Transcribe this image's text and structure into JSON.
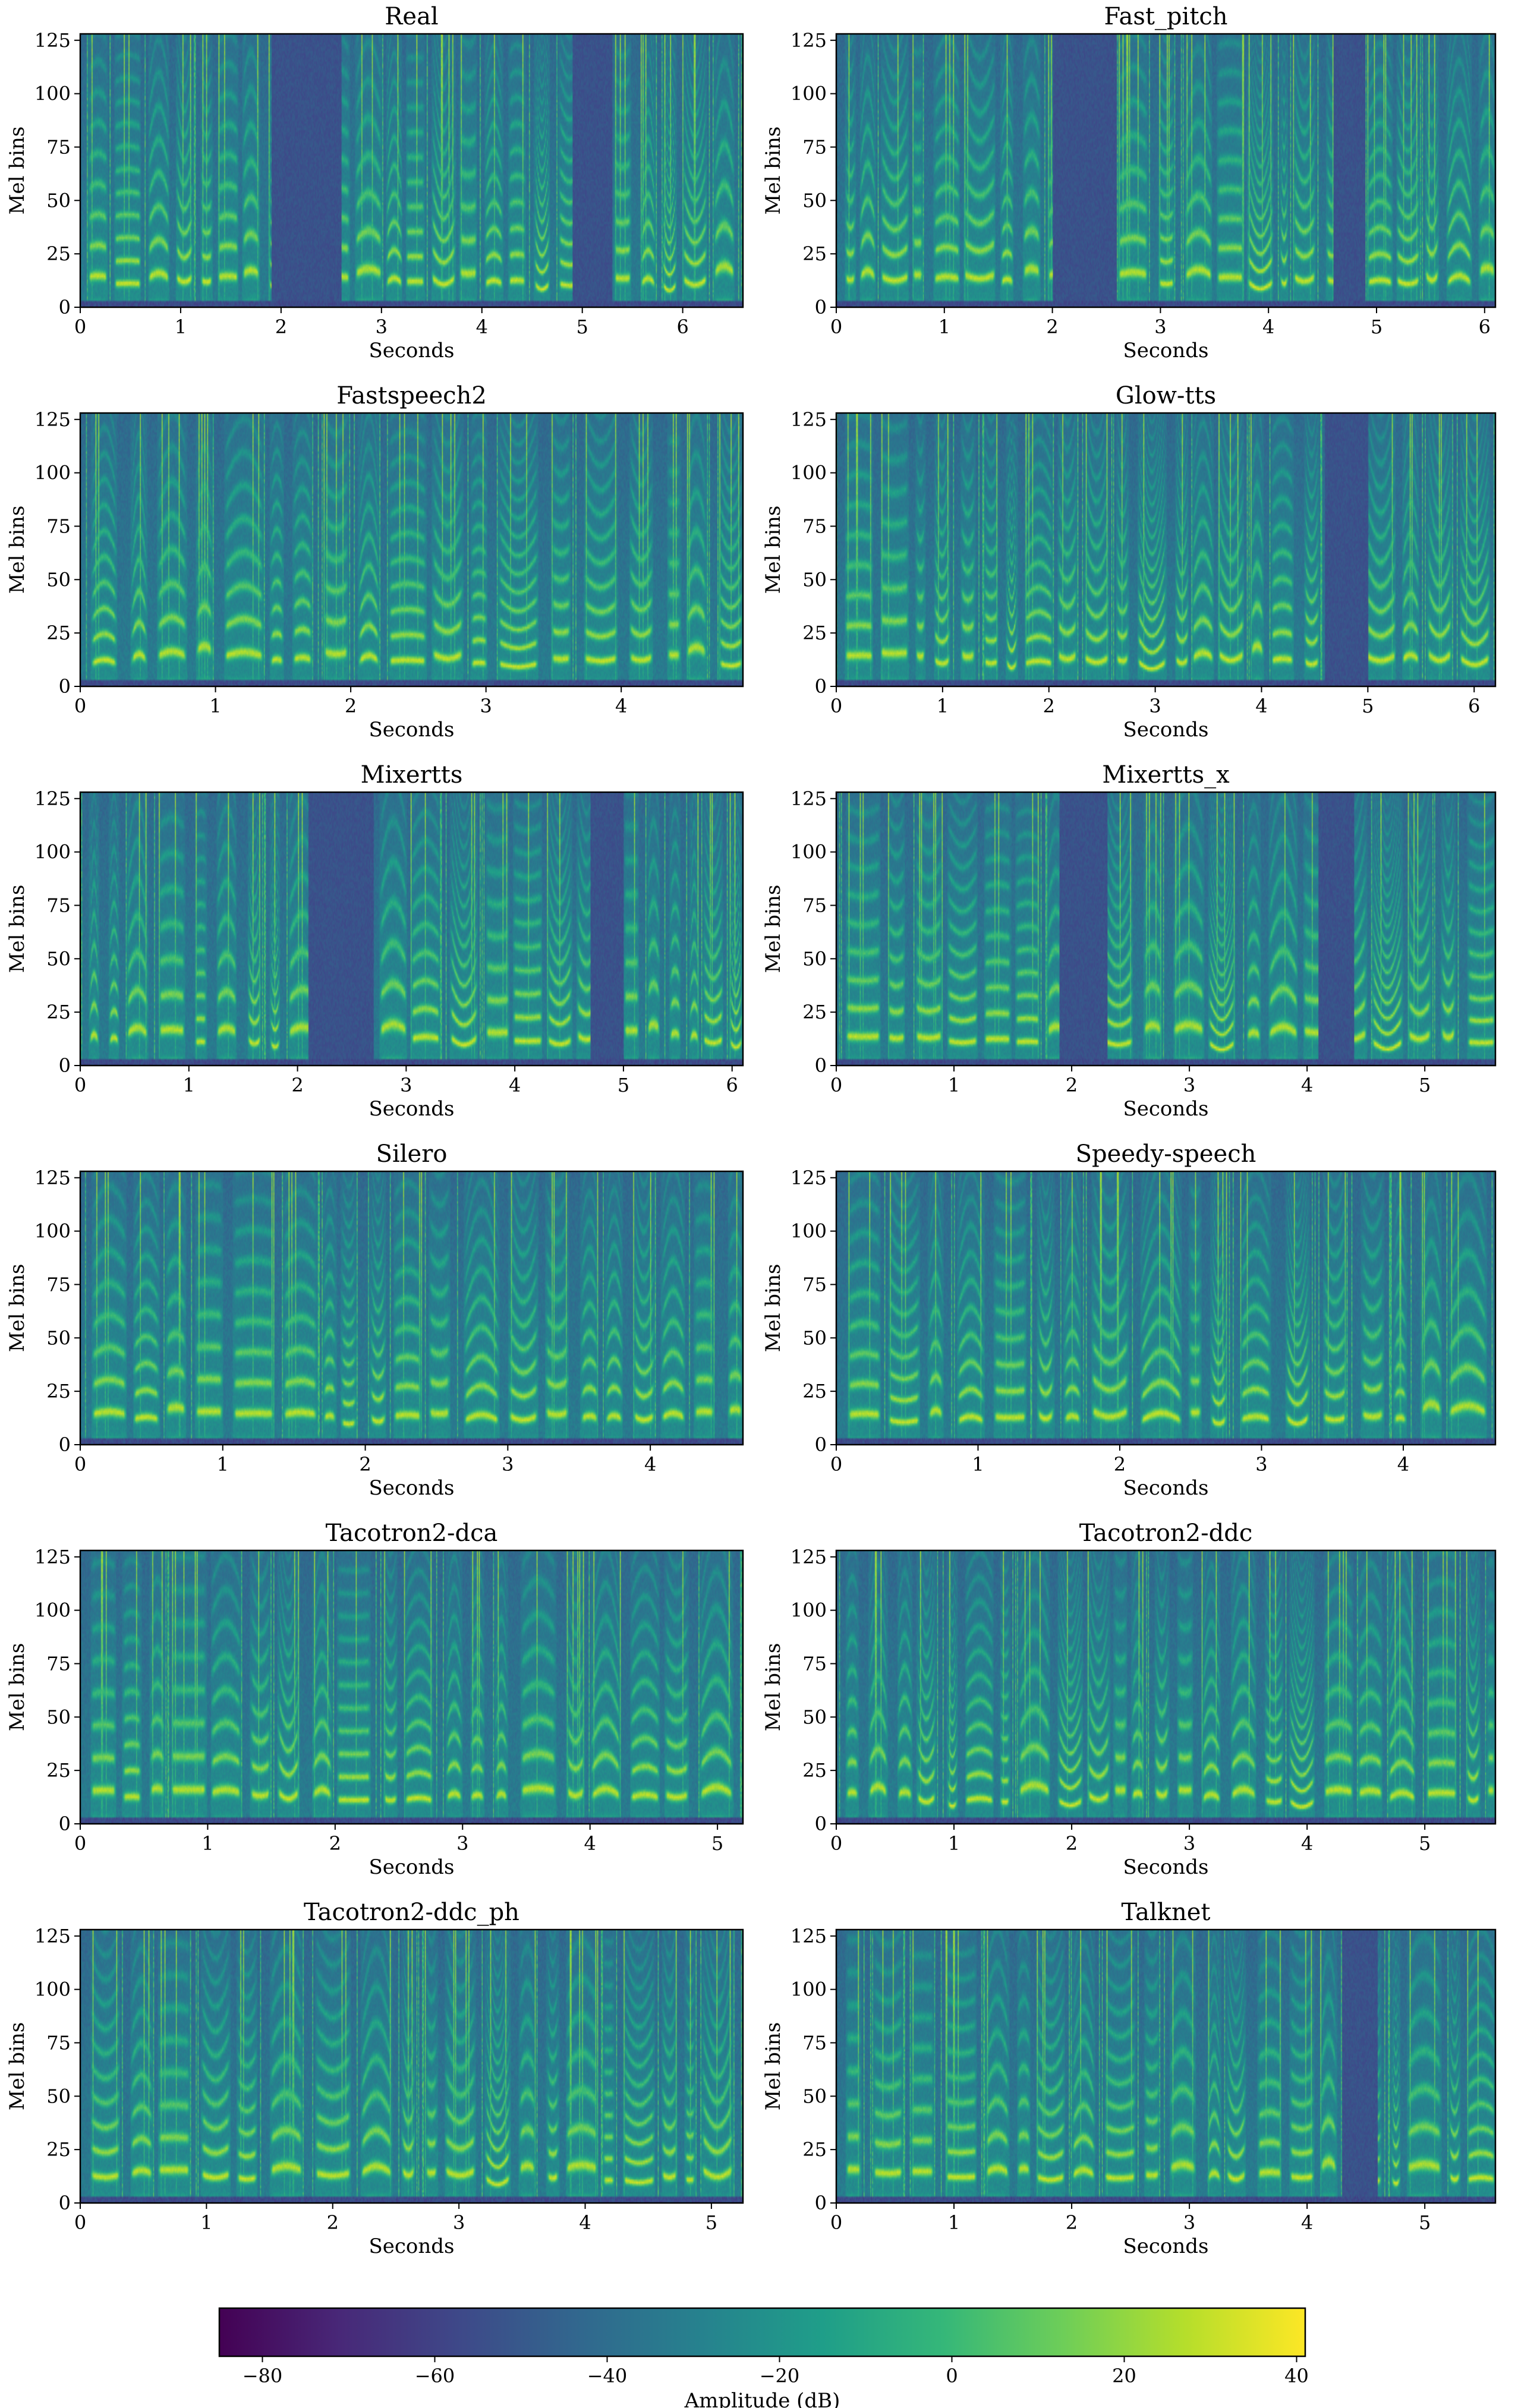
{
  "chart_data": [
    {
      "type": "heatmap",
      "title": "Real",
      "xlabel": "Seconds",
      "ylabel": "Mel bins",
      "xlim": [
        0,
        6.6
      ],
      "xticks": [
        0,
        1,
        2,
        3,
        4,
        5,
        6
      ],
      "ylim": [
        0,
        128
      ],
      "yticks": [
        0,
        25,
        50,
        75,
        100,
        125
      ],
      "duration": 6.6,
      "seed": 11,
      "gaps": [
        [
          1.9,
          2.6
        ],
        [
          4.9,
          5.3
        ]
      ]
    },
    {
      "type": "heatmap",
      "title": "Fast_pitch",
      "xlabel": "Seconds",
      "ylabel": "Mel bins",
      "xlim": [
        0,
        6.1
      ],
      "xticks": [
        0,
        1,
        2,
        3,
        4,
        5,
        6
      ],
      "ylim": [
        0,
        128
      ],
      "yticks": [
        0,
        25,
        50,
        75,
        100,
        125
      ],
      "duration": 6.1,
      "seed": 23,
      "gaps": [
        [
          2.0,
          2.6
        ],
        [
          4.6,
          4.9
        ]
      ]
    },
    {
      "type": "heatmap",
      "title": "Fastspeech2",
      "xlabel": "Seconds",
      "ylabel": "Mel bins",
      "xlim": [
        0,
        4.9
      ],
      "xticks": [
        0,
        1,
        2,
        3,
        4
      ],
      "ylim": [
        0,
        128
      ],
      "yticks": [
        0,
        25,
        50,
        75,
        100,
        125
      ],
      "duration": 4.9,
      "seed": 37,
      "gaps": []
    },
    {
      "type": "heatmap",
      "title": "Glow-tts",
      "xlabel": "Seconds",
      "ylabel": "Mel bins",
      "xlim": [
        0,
        6.2
      ],
      "xticks": [
        0,
        1,
        2,
        3,
        4,
        5,
        6
      ],
      "ylim": [
        0,
        128
      ],
      "yticks": [
        0,
        25,
        50,
        75,
        100,
        125
      ],
      "duration": 6.2,
      "seed": 41,
      "gaps": [
        [
          4.6,
          5.0
        ]
      ]
    },
    {
      "type": "heatmap",
      "title": "Mixertts",
      "xlabel": "Seconds",
      "ylabel": "Mel bins",
      "xlim": [
        0,
        6.1
      ],
      "xticks": [
        0,
        1,
        2,
        3,
        4,
        5,
        6
      ],
      "ylim": [
        0,
        128
      ],
      "yticks": [
        0,
        25,
        50,
        75,
        100,
        125
      ],
      "duration": 6.1,
      "seed": 53,
      "gaps": [
        [
          2.1,
          2.7
        ],
        [
          4.7,
          5.0
        ]
      ]
    },
    {
      "type": "heatmap",
      "title": "Mixertts_x",
      "xlabel": "Seconds",
      "ylabel": "Mel bins",
      "xlim": [
        0,
        5.6
      ],
      "xticks": [
        0,
        1,
        2,
        3,
        4,
        5
      ],
      "ylim": [
        0,
        128
      ],
      "yticks": [
        0,
        25,
        50,
        75,
        100,
        125
      ],
      "duration": 5.6,
      "seed": 67,
      "gaps": [
        [
          1.9,
          2.3
        ],
        [
          4.1,
          4.4
        ]
      ]
    },
    {
      "type": "heatmap",
      "title": "Silero",
      "xlabel": "Seconds",
      "ylabel": "Mel bins",
      "xlim": [
        0,
        4.65
      ],
      "xticks": [
        0,
        1,
        2,
        3,
        4
      ],
      "ylim": [
        0,
        128
      ],
      "yticks": [
        0,
        25,
        50,
        75,
        100,
        125
      ],
      "duration": 4.65,
      "seed": 71,
      "gaps": []
    },
    {
      "type": "heatmap",
      "title": "Speedy-speech",
      "xlabel": "Seconds",
      "ylabel": "Mel bins",
      "xlim": [
        0,
        4.65
      ],
      "xticks": [
        0,
        1,
        2,
        3,
        4
      ],
      "ylim": [
        0,
        128
      ],
      "yticks": [
        0,
        25,
        50,
        75,
        100,
        125
      ],
      "duration": 4.65,
      "seed": 83,
      "gaps": []
    },
    {
      "type": "heatmap",
      "title": "Tacotron2-dca",
      "xlabel": "Seconds",
      "ylabel": "Mel bins",
      "xlim": [
        0,
        5.2
      ],
      "xticks": [
        0,
        1,
        2,
        3,
        4,
        5
      ],
      "ylim": [
        0,
        128
      ],
      "yticks": [
        0,
        25,
        50,
        75,
        100,
        125
      ],
      "duration": 5.2,
      "seed": 97,
      "gaps": []
    },
    {
      "type": "heatmap",
      "title": "Tacotron2-ddc",
      "xlabel": "Seconds",
      "ylabel": "Mel bins",
      "xlim": [
        0,
        5.6
      ],
      "xticks": [
        0,
        1,
        2,
        3,
        4,
        5
      ],
      "ylim": [
        0,
        128
      ],
      "yticks": [
        0,
        25,
        50,
        75,
        100,
        125
      ],
      "duration": 5.6,
      "seed": 101,
      "gaps": []
    },
    {
      "type": "heatmap",
      "title": "Tacotron2-ddc_ph",
      "xlabel": "Seconds",
      "ylabel": "Mel bins",
      "xlim": [
        0,
        5.25
      ],
      "xticks": [
        0,
        1,
        2,
        3,
        4,
        5
      ],
      "ylim": [
        0,
        128
      ],
      "yticks": [
        0,
        25,
        50,
        75,
        100,
        125
      ],
      "duration": 5.25,
      "seed": 113,
      "gaps": []
    },
    {
      "type": "heatmap",
      "title": "Talknet",
      "xlabel": "Seconds",
      "ylabel": "Mel bins",
      "xlim": [
        0,
        5.6
      ],
      "xticks": [
        0,
        1,
        2,
        3,
        4,
        5
      ],
      "ylim": [
        0,
        128
      ],
      "yticks": [
        0,
        25,
        50,
        75,
        100,
        125
      ],
      "duration": 5.6,
      "seed": 127,
      "gaps": [
        [
          4.3,
          4.6
        ]
      ]
    }
  ],
  "colorbar": {
    "label": "Amplitude (dB)",
    "range": [
      -85,
      41
    ],
    "ticks": [
      -80,
      -60,
      -40,
      -20,
      0,
      20,
      40
    ],
    "colormap": "viridis",
    "colors": [
      "#440154",
      "#482878",
      "#3e4989",
      "#31688e",
      "#26828e",
      "#1f9e89",
      "#35b779",
      "#6ece58",
      "#b5de2b",
      "#fde725"
    ]
  }
}
